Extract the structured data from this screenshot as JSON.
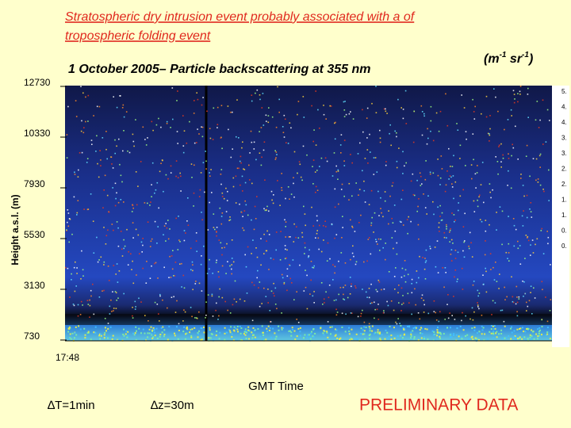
{
  "header": {
    "title_lines": [
      "Stratospheric dry intrusion event probably associated with a of",
      "tropospheric folding event"
    ],
    "subtitle": "1 October 2005– Particle backscattering at 355 nm",
    "unit": {
      "open": "(m",
      "sup1": "-1",
      "mid": " sr",
      "sup2": "-1",
      "close": ")"
    }
  },
  "plot": {
    "y_label": "Height a.s.l. (m)",
    "y_tick_labels": [
      "12730",
      "10330",
      "7930",
      "5530",
      "3130",
      "730"
    ],
    "x_tick_label": "17:48",
    "x_label": "GMT Time",
    "colorbar_labels": [
      "5.",
      "4.",
      "4.",
      "3.",
      "3.",
      "2.",
      "2.",
      "1.",
      "1.",
      "0.",
      "0."
    ]
  },
  "footer": {
    "notes": [
      "∆T=1min",
      "∆z=30m"
    ],
    "stamp": "PRELIMINARY DATA"
  }
}
